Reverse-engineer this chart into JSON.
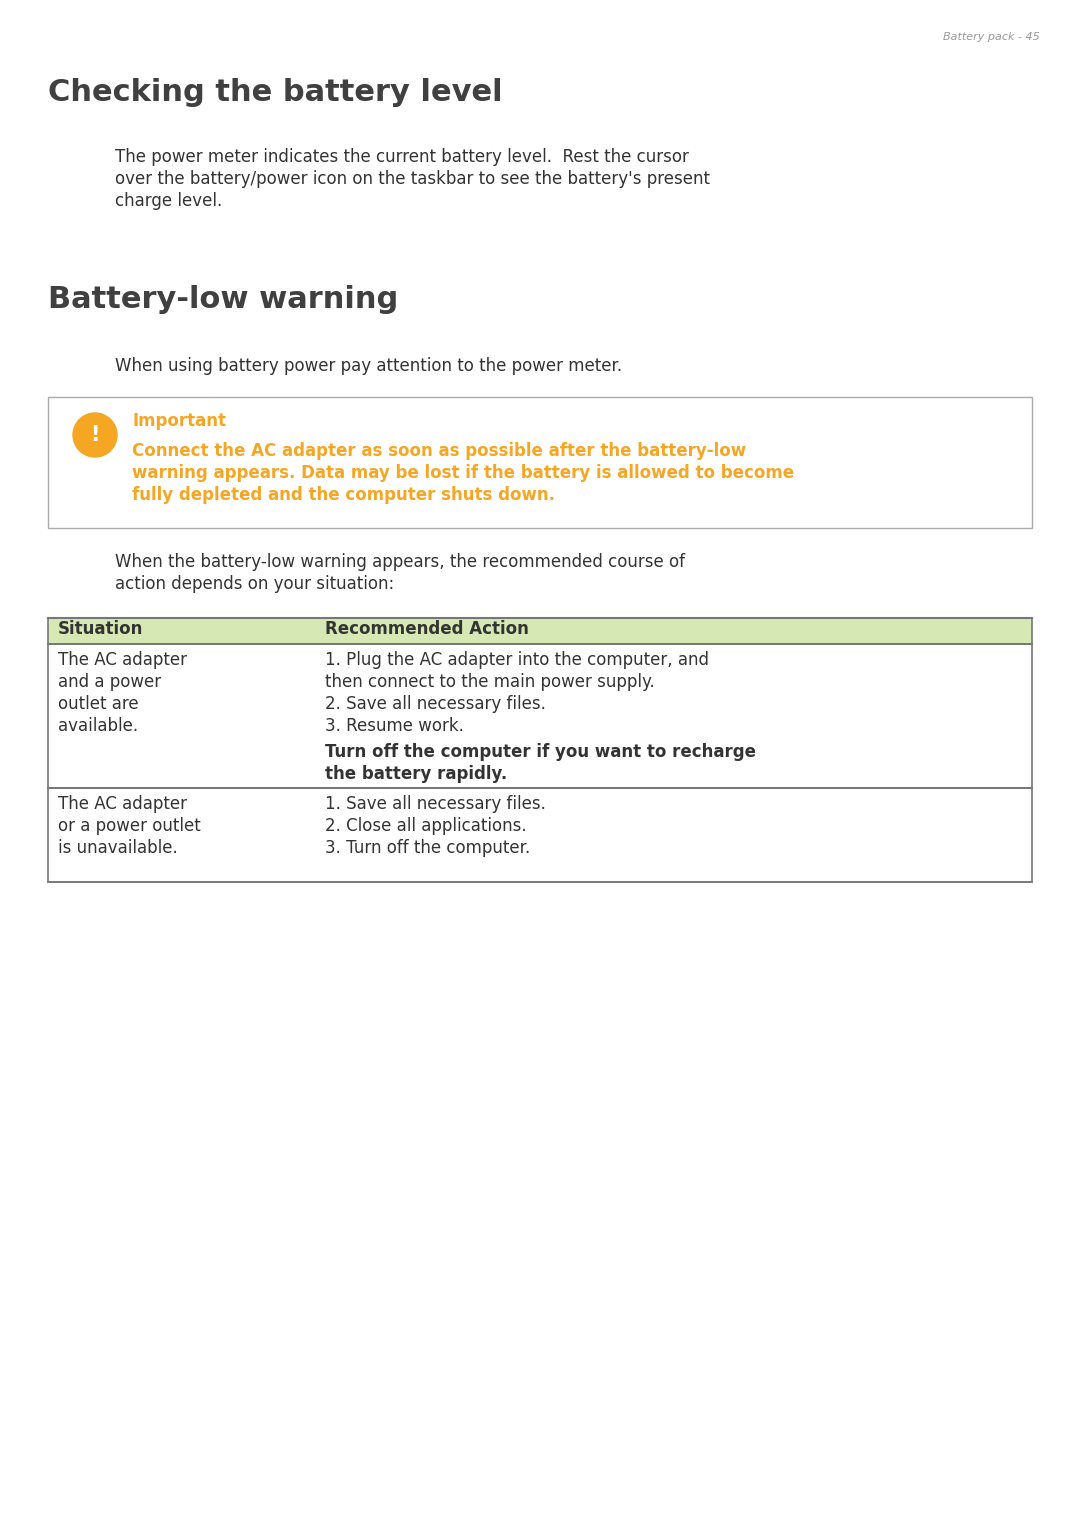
{
  "page_header": "Battery pack - 45",
  "header_color": "#999999",
  "header_fontsize": 8,
  "bg_color": "#ffffff",
  "section1_title": "Checking the battery level",
  "section1_title_fontsize": 22,
  "section1_title_color": "#404040",
  "body_fontsize": 12,
  "body_color": "#333333",
  "section2_title": "Battery-low warning",
  "section2_title_fontsize": 22,
  "section2_title_color": "#404040",
  "section2_intro": "When using battery power pay attention to the power meter.",
  "important_label": "Important",
  "important_label_color": "#f5a623",
  "important_label_fontsize": 12,
  "important_text_color": "#f5a623",
  "important_text_fontsize": 12,
  "important_box_border": "#aaaaaa",
  "important_icon_color": "#f5a623",
  "table_intro_line1": "When the battery-low warning appears, the recommended course of",
  "table_intro_line2": "action depends on your situation:",
  "table_header_bg": "#d6e8b4",
  "table_header_text_color": "#333333",
  "table_header_fontsize": 12,
  "table_col1_header": "Situation",
  "table_col2_header": "Recommended Action",
  "table_border_color": "#777777",
  "table_row1_sit_lines": [
    "The AC adapter",
    "and a power",
    "outlet are",
    "available."
  ],
  "table_row1_act_lines": [
    "1. Plug the AC adapter into the computer, and",
    "then connect to the main power supply.",
    "2. Save all necessary files.",
    "3. Resume work."
  ],
  "table_row1_bold_lines": [
    "Turn off the computer if you want to recharge",
    "the battery rapidly."
  ],
  "table_row2_sit_lines": [
    "The AC adapter",
    "or a power outlet",
    "is unavailable."
  ],
  "table_row2_act_lines": [
    "1. Save all necessary files.",
    "2. Close all applications.",
    "3. Turn off the computer."
  ]
}
